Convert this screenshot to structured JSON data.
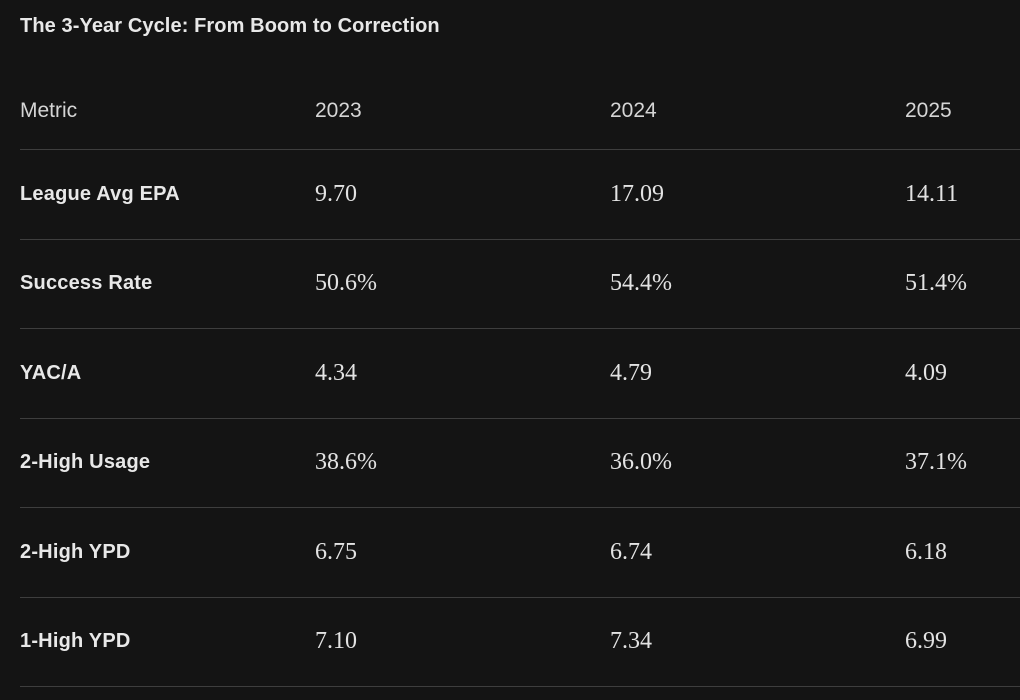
{
  "title": "The 3-Year Cycle: From Boom to Correction",
  "chart_data": {
    "type": "table",
    "title": "The 3-Year Cycle: From Boom to Correction",
    "columns": [
      "Metric",
      "2023",
      "2024",
      "2025"
    ],
    "rows": [
      [
        "League Avg EPA",
        "9.70",
        "17.09",
        "14.11"
      ],
      [
        "Success Rate",
        "50.6%",
        "54.4%",
        "51.4%"
      ],
      [
        "YAC/A",
        "4.34",
        "4.79",
        "4.09"
      ],
      [
        "2-High Usage",
        "38.6%",
        "36.0%",
        "37.1%"
      ],
      [
        "2-High YPD",
        "6.75",
        "6.74",
        "6.18"
      ],
      [
        "1-High YPD",
        "7.10",
        "7.34",
        "6.99"
      ]
    ],
    "layout": {
      "grid": "horizontal row separators only",
      "header_position": "top"
    }
  },
  "colors": {
    "background": "#141414",
    "row_border": "#3e3e3e",
    "title_text": "#e8e8e8",
    "header_text": "#d5d5d5",
    "metric_label_text": "#e8e8e8",
    "value_text": "#e3e3e3"
  }
}
